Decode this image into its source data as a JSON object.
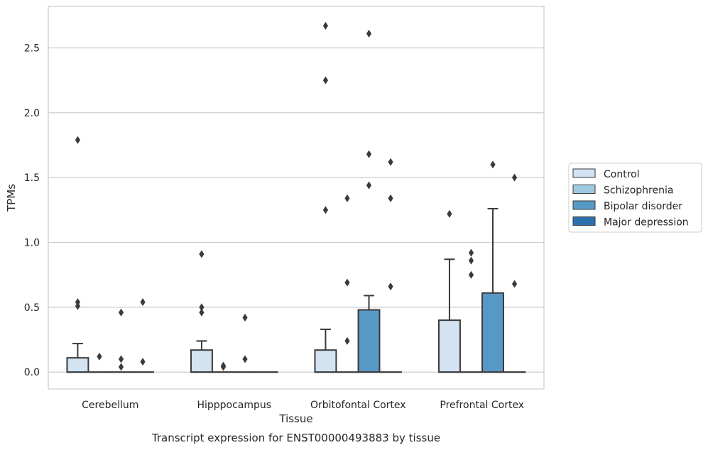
{
  "chart_data": {
    "type": "box",
    "title": "Transcript expression for ENST00000493883 by tissue",
    "xlabel": "Tissue",
    "ylabel": "TPMs",
    "ylim": [
      -0.13,
      2.82
    ],
    "yticks": [
      "0.0",
      "0.5",
      "1.0",
      "1.5",
      "2.0",
      "2.5"
    ],
    "grid": true,
    "legend_position": "right",
    "categories": [
      "Cerebellum",
      "Hipppocampus",
      "Orbitofontal Cortex",
      "Prefrontal Cortex"
    ],
    "series": [
      {
        "name": "Control",
        "color": "#d3e3f2",
        "boxes": [
          {
            "q1": 0,
            "median": 0,
            "q3": 0.11,
            "whisker_low": 0,
            "whisker_high": 0.22,
            "outliers": [
              1.79,
              0.54,
              0.51
            ]
          },
          {
            "q1": 0,
            "median": 0,
            "q3": 0.17,
            "whisker_low": 0,
            "whisker_high": 0.24,
            "outliers": [
              0.91,
              0.5,
              0.46
            ]
          },
          {
            "q1": 0,
            "median": 0,
            "q3": 0.17,
            "whisker_low": 0,
            "whisker_high": 0.33,
            "outliers": [
              2.67,
              2.25,
              1.25
            ]
          },
          {
            "q1": 0,
            "median": 0,
            "q3": 0.4,
            "whisker_low": 0,
            "whisker_high": 0.87,
            "outliers": [
              1.22
            ]
          }
        ]
      },
      {
        "name": "Schizophrenia",
        "color": "#9ecae1",
        "boxes": [
          {
            "q1": 0,
            "median": 0,
            "q3": 0,
            "whisker_low": 0,
            "whisker_high": 0,
            "outliers": [
              0.12
            ]
          },
          {
            "q1": 0,
            "median": 0,
            "q3": 0,
            "whisker_low": 0,
            "whisker_high": 0,
            "outliers": [
              0.05,
              0.04
            ]
          },
          {
            "q1": 0,
            "median": 0,
            "q3": 0,
            "whisker_low": 0,
            "whisker_high": 0,
            "outliers": [
              1.34,
              0.69,
              0.24
            ]
          },
          {
            "q1": 0,
            "median": 0,
            "q3": 0,
            "whisker_low": 0,
            "whisker_high": 0,
            "outliers": [
              0.92,
              0.86,
              0.75
            ]
          }
        ]
      },
      {
        "name": "Bipolar disorder",
        "color": "#5799c6",
        "boxes": [
          {
            "q1": 0,
            "median": 0,
            "q3": 0,
            "whisker_low": 0,
            "whisker_high": 0,
            "outliers": [
              0.46,
              0.1,
              0.04
            ]
          },
          {
            "q1": 0,
            "median": 0,
            "q3": 0,
            "whisker_low": 0,
            "whisker_high": 0,
            "outliers": [
              0.42,
              0.1
            ]
          },
          {
            "q1": 0,
            "median": 0,
            "q3": 0.48,
            "whisker_low": 0,
            "whisker_high": 0.59,
            "outliers": [
              2.61,
              1.68,
              1.44
            ]
          },
          {
            "q1": 0,
            "median": 0,
            "q3": 0.61,
            "whisker_low": 0,
            "whisker_high": 1.26,
            "outliers": [
              1.6
            ]
          }
        ]
      },
      {
        "name": "Major depression",
        "color": "#2c6fad",
        "boxes": [
          {
            "q1": 0,
            "median": 0,
            "q3": 0,
            "whisker_low": 0,
            "whisker_high": 0,
            "outliers": [
              0.54,
              0.08
            ]
          },
          {
            "q1": 0,
            "median": 0,
            "q3": 0,
            "whisker_low": 0,
            "whisker_high": 0,
            "outliers": []
          },
          {
            "q1": 0,
            "median": 0,
            "q3": 0,
            "whisker_low": 0,
            "whisker_high": 0,
            "outliers": [
              1.62,
              1.34,
              0.66
            ]
          },
          {
            "q1": 0,
            "median": 0,
            "q3": 0,
            "whisker_low": 0,
            "whisker_high": 0,
            "outliers": [
              1.5,
              0.68
            ]
          }
        ]
      }
    ]
  }
}
